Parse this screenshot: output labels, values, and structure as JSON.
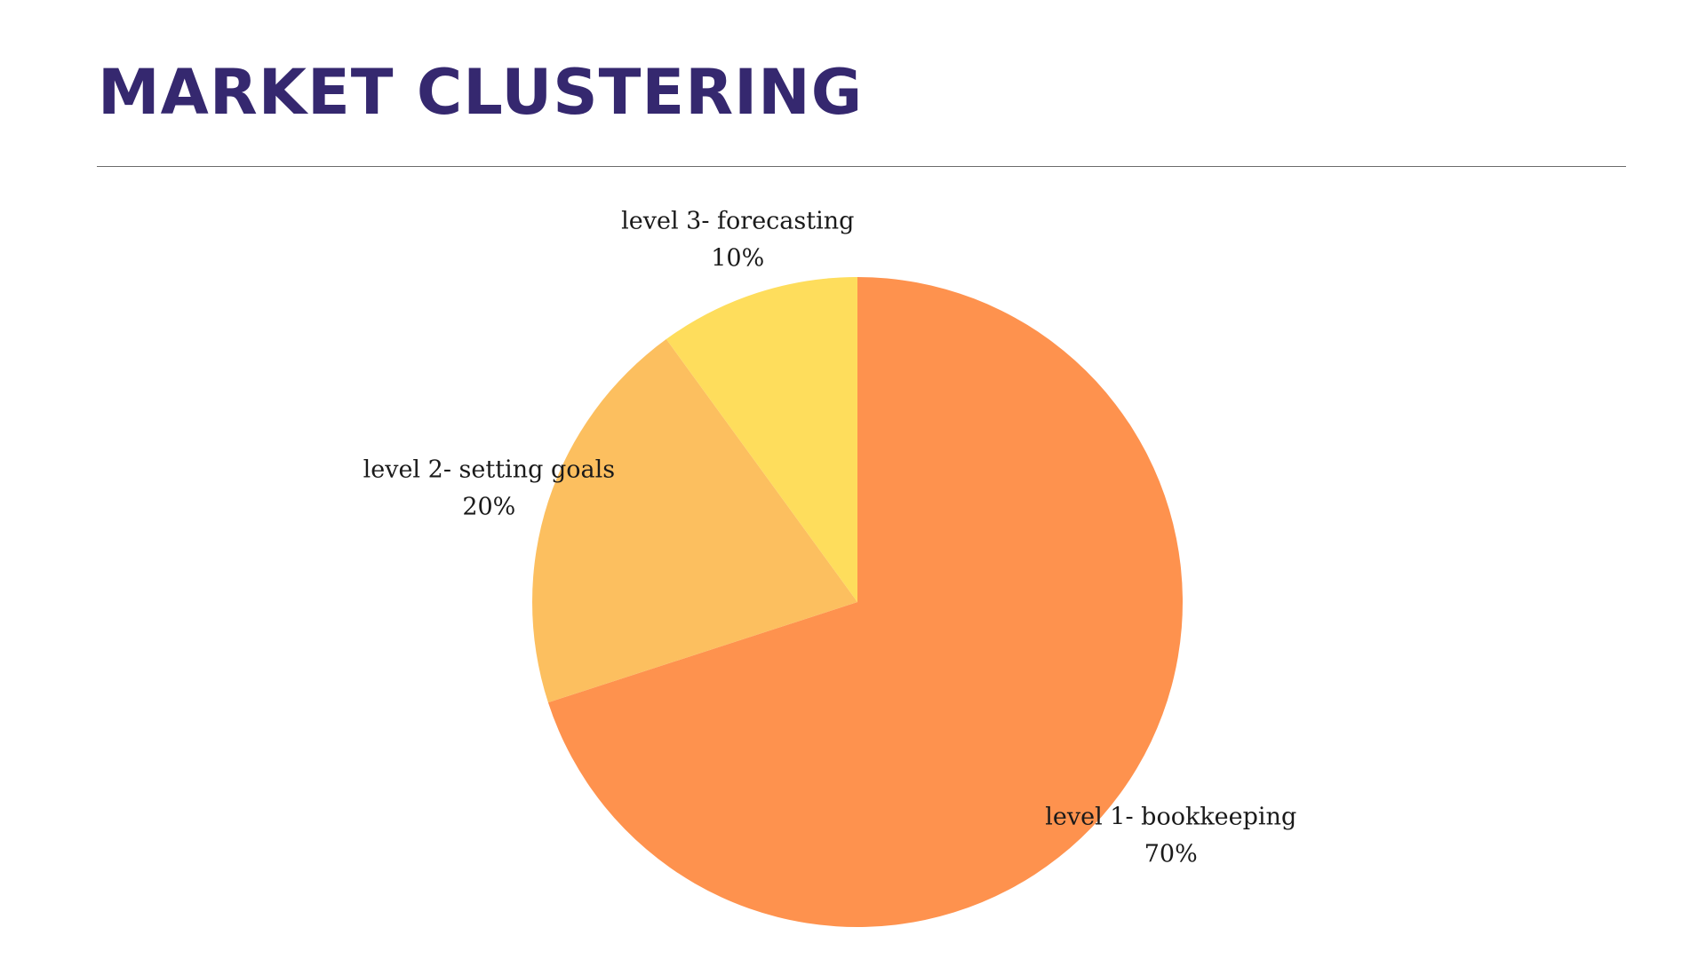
{
  "slide": {
    "title": "MARKET CLUSTERING",
    "title_color": "#35286f"
  },
  "chart_data": {
    "type": "pie",
    "title": "",
    "start_angle": "12 o'clock",
    "direction": "clockwise",
    "categories": [
      "level 1- bookkeeping",
      "level 2- setting goals",
      "level 3- forecasting"
    ],
    "values": [
      70,
      20,
      10
    ],
    "value_labels": [
      "70%",
      "20%",
      "10%"
    ],
    "colors": [
      "#fe924e",
      "#fcbf5f",
      "#fedd5c"
    ]
  }
}
